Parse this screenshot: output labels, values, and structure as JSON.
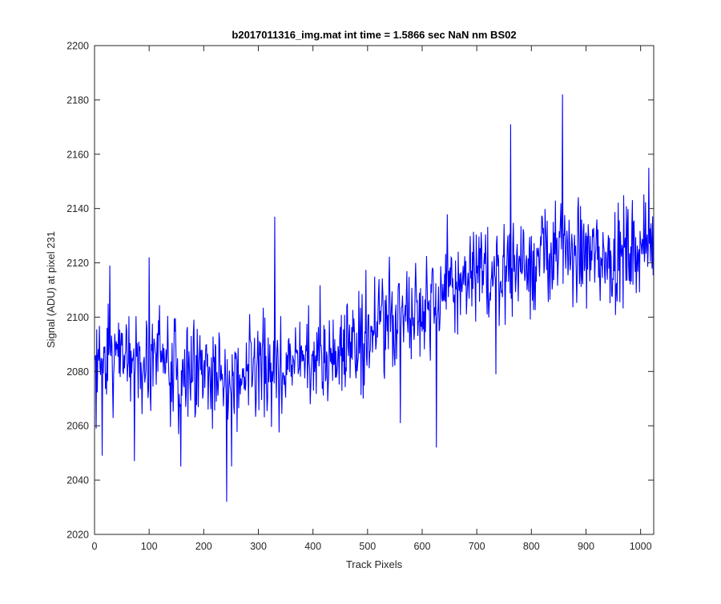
{
  "chart_data": {
    "type": "line",
    "title": "b2017011316_img.mat int time = 1.5866 sec  NaN nm BS02",
    "xlabel": "Track Pixels",
    "ylabel": "Signal (ADU) at pixel 231",
    "xlim": [
      0,
      1024
    ],
    "ylim": [
      2020,
      2200
    ],
    "xticks": [
      0,
      100,
      200,
      300,
      400,
      500,
      600,
      700,
      800,
      900,
      1000
    ],
    "yticks": [
      2020,
      2040,
      2060,
      2080,
      2100,
      2120,
      2140,
      2160,
      2180,
      2200
    ],
    "grid": false,
    "legend": "none",
    "line_color": "#0000ff",
    "series": [
      {
        "name": "",
        "x_start": 1,
        "x_step": 1,
        "n_points": 1024,
        "trend_points": [
          [
            1,
            2085
          ],
          [
            100,
            2085
          ],
          [
            200,
            2080
          ],
          [
            260,
            2076
          ],
          [
            350,
            2082
          ],
          [
            450,
            2088
          ],
          [
            550,
            2100
          ],
          [
            650,
            2110
          ],
          [
            750,
            2118
          ],
          [
            850,
            2124
          ],
          [
            950,
            2122
          ],
          [
            1024,
            2128
          ]
        ],
        "noise_amplitude": 12,
        "notable_points": [
          [
            3,
            2059
          ],
          [
            14,
            2049
          ],
          [
            28,
            2119
          ],
          [
            73,
            2047
          ],
          [
            100,
            2122
          ],
          [
            158,
            2045
          ],
          [
            242,
            2032
          ],
          [
            251,
            2045
          ],
          [
            330,
            2137
          ],
          [
            560,
            2061
          ],
          [
            626,
            2052
          ],
          [
            735,
            2079
          ],
          [
            762,
            2171
          ],
          [
            857,
            2182
          ],
          [
            1015,
            2155
          ]
        ]
      }
    ]
  }
}
